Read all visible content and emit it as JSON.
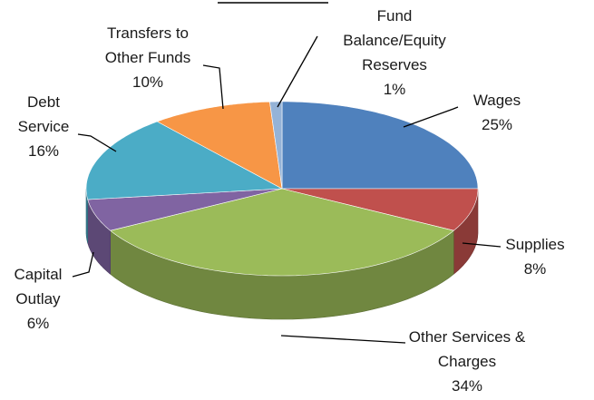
{
  "chart_data": {
    "type": "pie3d",
    "categories": [
      "Wages",
      "Supplies",
      "Other Services & Charges",
      "Capital Outlay",
      "Debt Service",
      "Transfers to Other Funds",
      "Fund Balance/Equity Reserves"
    ],
    "values": [
      25,
      8,
      34,
      6,
      16,
      10,
      1
    ],
    "value_labels": [
      "25%",
      "8%",
      "34%",
      "6%",
      "16%",
      "10%",
      "1%"
    ],
    "colors": [
      "#4f81bd",
      "#c0504d",
      "#9bbb59",
      "#8064a2",
      "#4bacc6",
      "#f79646",
      "#95b3d7"
    ]
  }
}
